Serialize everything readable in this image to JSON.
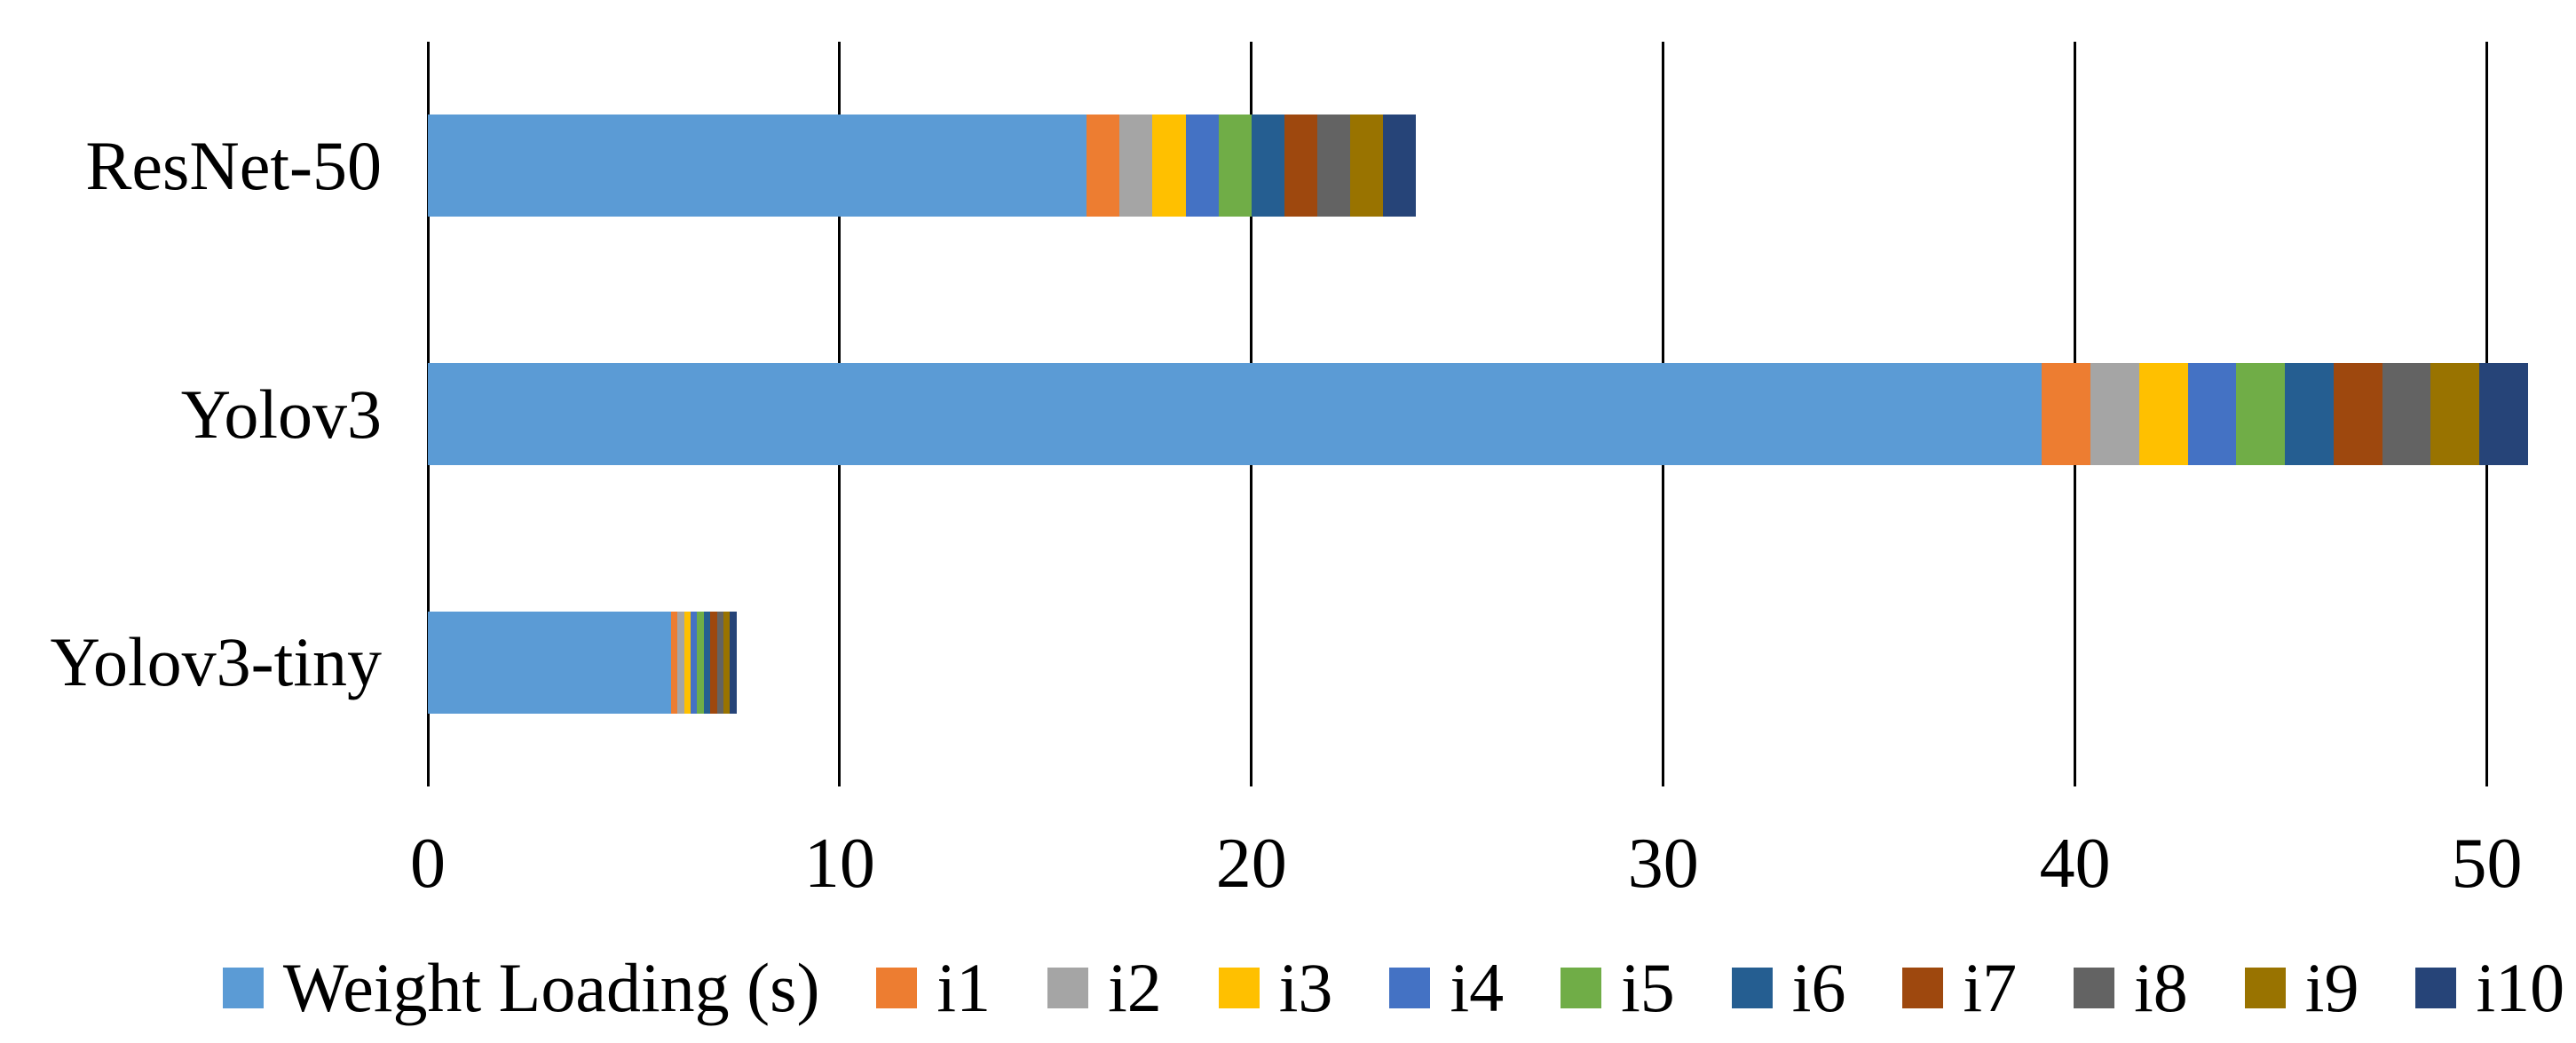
{
  "chart_data": {
    "type": "bar",
    "orientation": "horizontal",
    "stacked": true,
    "title": "",
    "categories": [
      "ResNet-50",
      "Yolov3",
      "Yolov3-tiny"
    ],
    "series": [
      {
        "name": "Weight Loading (s)",
        "color": "#5B9BD5",
        "values": [
          16.0,
          39.2,
          5.9
        ]
      },
      {
        "name": "i1",
        "color": "#ED7D31",
        "values": [
          0.8,
          1.18,
          0.16
        ]
      },
      {
        "name": "i2",
        "color": "#A5A5A5",
        "values": [
          0.8,
          1.18,
          0.16
        ]
      },
      {
        "name": "i3",
        "color": "#FFC000",
        "values": [
          0.8,
          1.18,
          0.16
        ]
      },
      {
        "name": "i4",
        "color": "#4472C4",
        "values": [
          0.8,
          1.18,
          0.16
        ]
      },
      {
        "name": "i5",
        "color": "#70AD47",
        "values": [
          0.8,
          1.18,
          0.16
        ]
      },
      {
        "name": "i6",
        "color": "#255E91",
        "values": [
          0.8,
          1.18,
          0.16
        ]
      },
      {
        "name": "i7",
        "color": "#9E480E",
        "values": [
          0.8,
          1.18,
          0.16
        ]
      },
      {
        "name": "i8",
        "color": "#636363",
        "values": [
          0.8,
          1.18,
          0.16
        ]
      },
      {
        "name": "i9",
        "color": "#997300",
        "values": [
          0.8,
          1.18,
          0.16
        ]
      },
      {
        "name": "i10",
        "color": "#264478",
        "values": [
          0.8,
          1.18,
          0.16
        ]
      }
    ],
    "totals": [
      24.0,
      51.0,
      7.5
    ],
    "x_axis": {
      "min": 0,
      "max": 52,
      "tick_interval": 10,
      "tick_values": [
        0,
        10,
        20,
        30,
        40,
        50
      ],
      "tick_labels": [
        "0",
        "10",
        "20",
        "30",
        "40",
        "50"
      ]
    },
    "grid": true,
    "legend_position": "bottom",
    "colors": {
      "text": "#000000",
      "gridline": "#000000",
      "background": "#FFFFFF"
    }
  }
}
